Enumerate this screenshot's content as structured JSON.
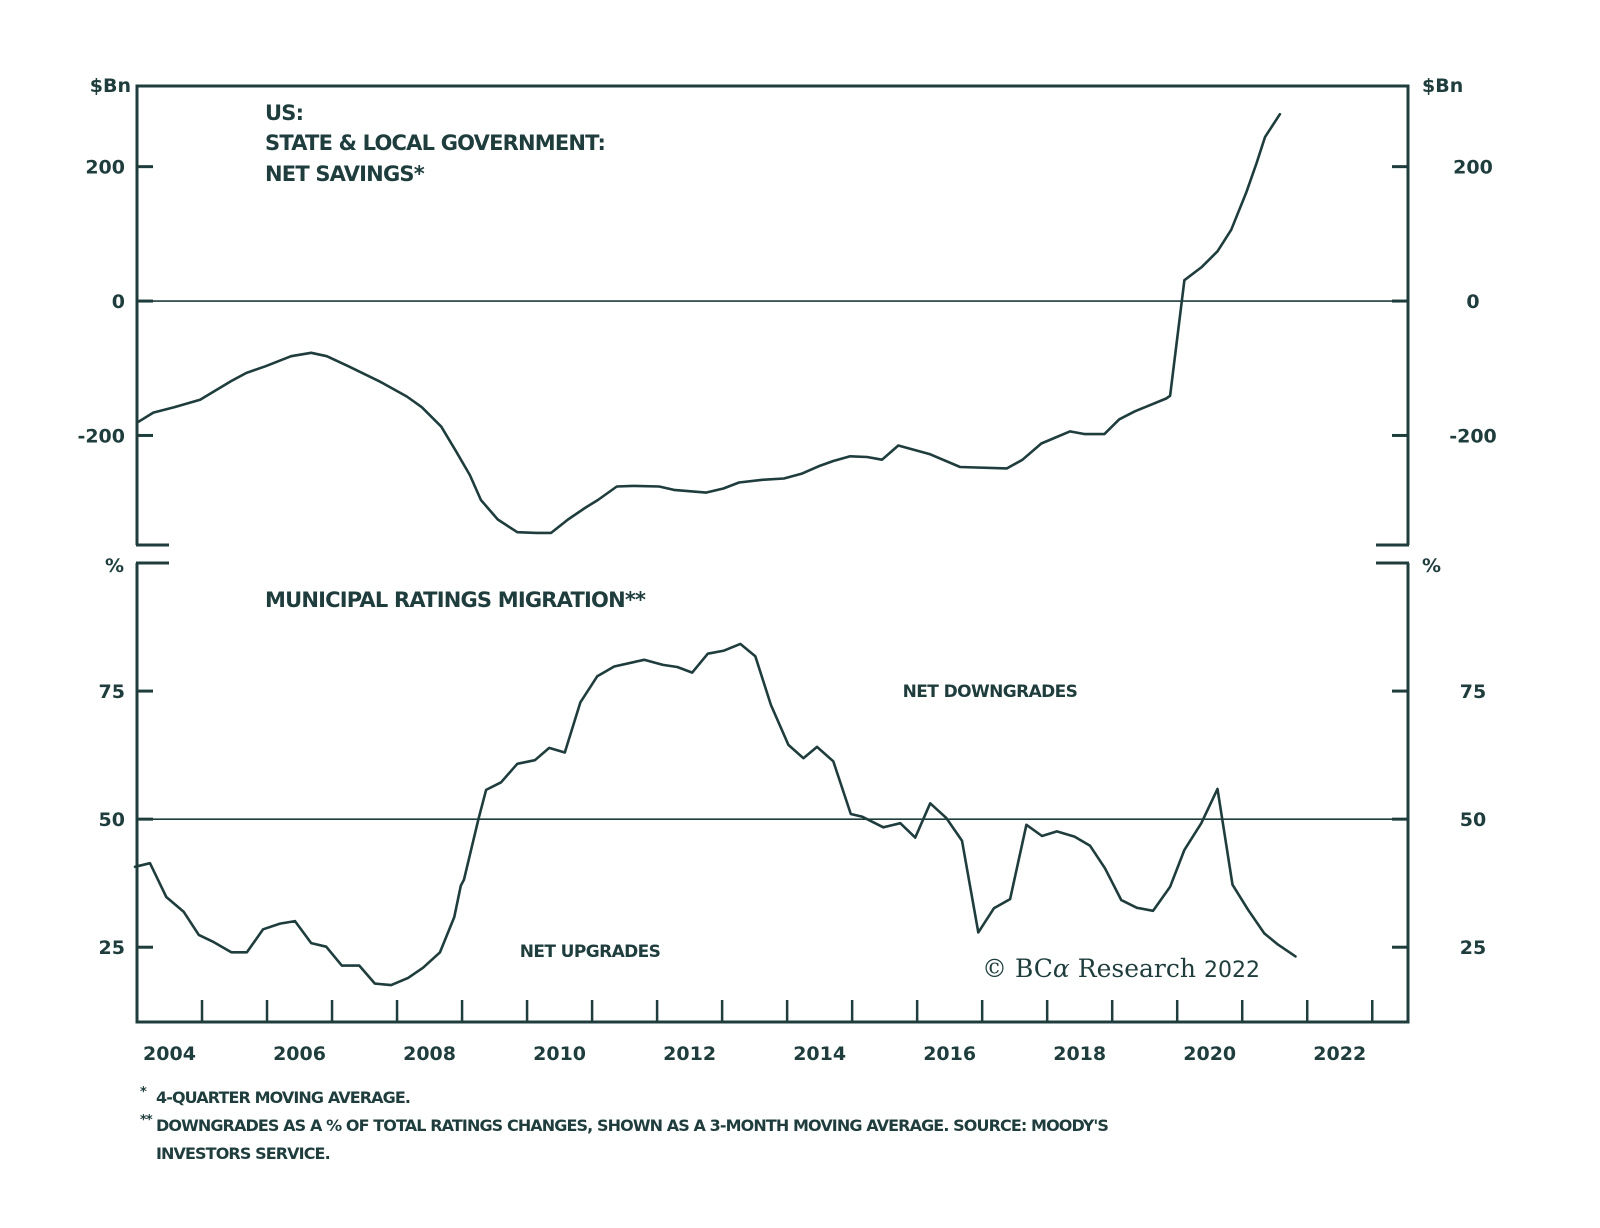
{
  "colors": {
    "ink": "#1f3d3d",
    "background": "#ffffff"
  },
  "chart_data": [
    {
      "type": "line",
      "panel": "top",
      "title_lines": [
        "US:",
        "STATE & LOCAL GOVERNMENT:",
        "NET SAVINGS*"
      ],
      "ylabel_left": "$Bn",
      "ylabel_right": "$Bn",
      "ylim": [
        -363,
        320
      ],
      "yticks": [
        200,
        0,
        -200
      ],
      "ytick_labels": [
        "200",
        "0",
        "-200"
      ],
      "reference_line": 0,
      "grid": false,
      "legend": "none",
      "series": [
        {
          "name": "State & local government net savings (4Q MA, $Bn)",
          "x": [
            2004.0,
            2004.25,
            2004.57,
            2004.97,
            2005.45,
            2005.68,
            2005.98,
            2006.37,
            2006.68,
            2006.92,
            2007.25,
            2007.74,
            2008.15,
            2008.38,
            2008.68,
            2008.91,
            2009.12,
            2009.29,
            2009.55,
            2009.85,
            2010.14,
            2010.37,
            2010.63,
            2010.89,
            2011.09,
            2011.38,
            2011.62,
            2012.03,
            2012.26,
            2012.75,
            2013.02,
            2013.26,
            2013.62,
            2013.95,
            2014.22,
            2014.48,
            2014.71,
            2014.97,
            2015.23,
            2015.46,
            2015.71,
            2015.94,
            2016.2,
            2016.66,
            2017.38,
            2017.62,
            2017.91,
            2018.35,
            2018.58,
            2018.88,
            2019.11,
            2019.35,
            2019.83,
            2019.89,
            2020.11,
            2020.37,
            2020.62,
            2020.83,
            2021.06,
            2021.22,
            2021.35,
            2021.58
          ],
          "values": [
            -181,
            -166,
            -158,
            -147,
            -119,
            -107,
            -97,
            -82,
            -77,
            -82,
            -97,
            -120,
            -142,
            -158,
            -187,
            -224,
            -259,
            -296,
            -325,
            -344,
            -345,
            -345,
            -325,
            -308,
            -296,
            -276,
            -275,
            -276,
            -281,
            -285,
            -279,
            -270,
            -266,
            -264,
            -257,
            -246,
            -238,
            -231,
            -232,
            -236,
            -215,
            -221,
            -228,
            -247,
            -249,
            -236,
            -212,
            -194,
            -198,
            -198,
            -176,
            -164,
            -145,
            -141,
            31,
            50,
            74,
            106,
            161,
            205,
            244,
            278
          ]
        }
      ]
    },
    {
      "type": "line",
      "panel": "bottom",
      "title": "MUNICIPAL RATINGS MIGRATION**",
      "ylabel_left": "%",
      "ylabel_right": "%",
      "ylim": [
        10.4,
        100
      ],
      "yticks": [
        75,
        50,
        25
      ],
      "ytick_labels": [
        "75",
        "50",
        "25"
      ],
      "reference_line": 50,
      "grid": false,
      "legend": "none",
      "annotations": [
        "NET DOWNGRADES",
        "NET UPGRADES"
      ],
      "series": [
        {
          "name": "Downgrades as % of total ratings changes (3M MA)",
          "x": [
            2003.97,
            2004.2,
            2004.45,
            2004.72,
            2004.95,
            2005.18,
            2005.45,
            2005.69,
            2005.94,
            2006.2,
            2006.43,
            2006.68,
            2006.91,
            2007.15,
            2007.42,
            2007.66,
            2007.91,
            2008.17,
            2008.4,
            2008.66,
            2008.88,
            2008.98,
            2009.03,
            2009.25,
            2009.37,
            2009.6,
            2009.85,
            2010.12,
            2010.34,
            2010.58,
            2010.82,
            2011.08,
            2011.34,
            2011.8,
            2012.09,
            2012.31,
            2012.54,
            2012.78,
            2013.03,
            2013.28,
            2013.51,
            2013.75,
            2014.02,
            2014.25,
            2014.46,
            2014.71,
            2014.98,
            2015.15,
            2015.48,
            2015.74,
            2015.97,
            2016.2,
            2016.45,
            2016.69,
            2016.94,
            2017.18,
            2017.43,
            2017.68,
            2017.92,
            2018.15,
            2018.42,
            2018.66,
            2018.89,
            2019.14,
            2019.38,
            2019.63,
            2019.89,
            2020.11,
            2020.37,
            2020.62,
            2020.85,
            2021.09,
            2021.34,
            2021.55,
            2021.82
          ],
          "values": [
            40.7,
            41.4,
            34.8,
            31.9,
            27.4,
            26.0,
            24.0,
            24.0,
            28.5,
            29.6,
            30.1,
            25.8,
            25.1,
            21.4,
            21.4,
            17.9,
            17.6,
            19.0,
            21.0,
            24.0,
            30.9,
            37.0,
            38.2,
            49.9,
            55.7,
            57.2,
            60.8,
            61.5,
            63.9,
            63.0,
            72.8,
            77.9,
            79.8,
            81.1,
            80.1,
            79.7,
            78.6,
            82.3,
            82.9,
            84.2,
            81.8,
            72.3,
            64.5,
            61.9,
            64.1,
            61.3,
            51.0,
            50.5,
            48.4,
            49.2,
            46.4,
            53.1,
            50.2,
            45.8,
            27.9,
            32.6,
            34.4,
            48.9,
            46.7,
            47.6,
            46.6,
            44.8,
            40.4,
            34.2,
            32.7,
            32.1,
            36.8,
            44.0,
            49.2,
            55.9,
            37.2,
            32.3,
            27.7,
            25.5,
            23.2
          ]
        }
      ]
    }
  ],
  "x_axis": {
    "xlim": [
      2004.0,
      2023.55
    ],
    "minor_ticks_every_year": true,
    "labels": [
      "2004",
      "2006",
      "2008",
      "2010",
      "2012",
      "2014",
      "2016",
      "2018",
      "2020",
      "2022"
    ],
    "label_years": [
      2004,
      2006,
      2008,
      2010,
      2012,
      2014,
      2016,
      2018,
      2020,
      2022
    ]
  },
  "annotations": {
    "net_downgrades": "NET DOWNGRADES",
    "net_upgrades": "NET UPGRADES",
    "watermark_prefix": "© BC",
    "watermark_alpha": "α",
    "watermark_suffix": " Research",
    "watermark_year": "2022"
  },
  "footnotes": [
    {
      "mark": "*",
      "text": "4-QUARTER MOVING AVERAGE."
    },
    {
      "mark": "**",
      "text": "DOWNGRADES AS A % OF TOTAL RATINGS CHANGES, SHOWN AS A 3-MONTH MOVING AVERAGE. SOURCE: MOODY'S",
      "continuation": "INVESTORS SERVICE."
    }
  ]
}
